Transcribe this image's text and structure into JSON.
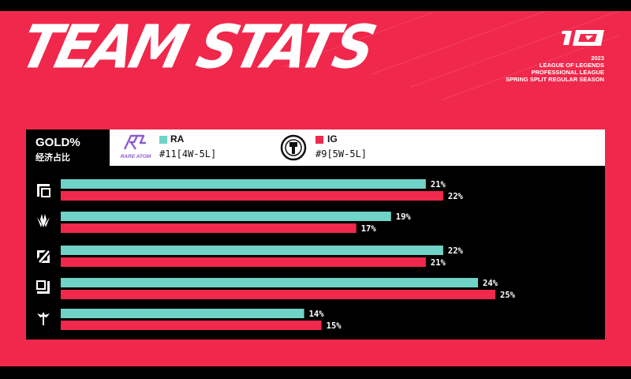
{
  "header": {
    "title": "TEAM STATS",
    "subtitle_lines": [
      "2023",
      "LEAGUE OF LEGENDS",
      "PROFESSIONAL LEAGUE",
      "SPRING SPLIT REGULAR SEASON"
    ]
  },
  "stat": {
    "label": "GOLD%",
    "label_cn": "经济占比"
  },
  "teams": [
    {
      "code": "RA",
      "record": "#11[4W-5L]",
      "logo_text": "RARE ATOM",
      "color": "#6fd3c7"
    },
    {
      "code": "IG",
      "record": "#9[5W-5L]",
      "logo_text": "",
      "color": "#f0284b"
    }
  ],
  "positions": [
    {
      "icon": "top-lane-icon"
    },
    {
      "icon": "jungle-icon"
    },
    {
      "icon": "mid-lane-icon"
    },
    {
      "icon": "bot-lane-icon"
    },
    {
      "icon": "support-icon"
    }
  ],
  "colors": {
    "background": "#f0284b",
    "ra": "#6fd3c7",
    "ig": "#f0284b",
    "panel": "#000000"
  },
  "chart_data": {
    "type": "bar",
    "orientation": "horizontal",
    "categories": [
      "Top",
      "Jungle",
      "Mid",
      "Bot",
      "Support"
    ],
    "series": [
      {
        "name": "RA",
        "values": [
          21,
          19,
          22,
          24,
          14
        ],
        "labels": [
          "21%",
          "19%",
          "22%",
          "24%",
          "14%"
        ]
      },
      {
        "name": "IG",
        "values": [
          22,
          17,
          21,
          25,
          15
        ],
        "labels": [
          "22%",
          "17%",
          "21%",
          "25%",
          "15%"
        ]
      }
    ],
    "title": "GOLD%",
    "xlim": [
      0,
      25
    ]
  }
}
